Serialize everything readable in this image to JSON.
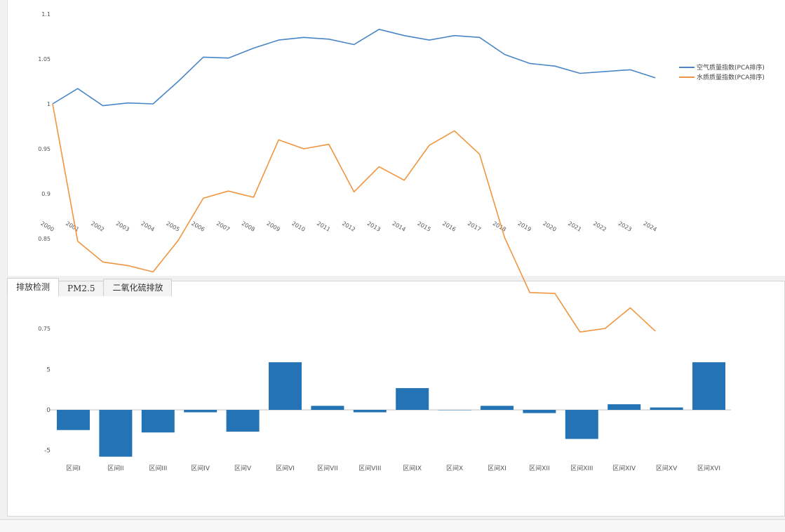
{
  "colors": {
    "series_1": "#4a86c5",
    "series_2": "#f0953f",
    "bar": "#2474b5",
    "axis": "#bfbfbf",
    "tick_text": "#555555"
  },
  "tabs": [
    "排放检测",
    "PM2.5",
    "二氧化硫排放"
  ],
  "chart_data": [
    {
      "type": "line",
      "x": [
        "2000",
        "2001",
        "2002",
        "2003",
        "2004",
        "2005",
        "2006",
        "2007",
        "2008",
        "2009",
        "2010",
        "2011",
        "2012",
        "2013",
        "2014",
        "2015",
        "2016",
        "2017",
        "2018",
        "2019",
        "2020",
        "2021",
        "2022",
        "2023",
        "2024"
      ],
      "series": [
        {
          "name": "空气质量指数(PCA排序)",
          "values": [
            1.0,
            1.017,
            0.998,
            1.001,
            1.0,
            1.025,
            1.052,
            1.051,
            1.062,
            1.071,
            1.074,
            1.072,
            1.066,
            1.083,
            1.076,
            1.071,
            1.076,
            1.074,
            1.055,
            1.045,
            1.042,
            1.034,
            1.036,
            1.038,
            1.029
          ]
        },
        {
          "name": "水质质量指数(PCA排序)",
          "values": [
            1.0,
            0.847,
            0.824,
            0.82,
            0.813,
            0.848,
            0.895,
            0.903,
            0.896,
            0.96,
            0.95,
            0.955,
            0.902,
            0.93,
            0.915,
            0.954,
            0.97,
            0.944,
            0.851,
            0.79,
            0.789,
            0.746,
            0.75,
            0.773,
            0.747
          ]
        }
      ],
      "ylim": [
        0.75,
        1.1
      ],
      "yticks": [
        "0.75",
        "0.8",
        "0.85",
        "0.9",
        "0.95",
        "1",
        "1.05",
        "1.1"
      ],
      "grid": false,
      "legend": "right"
    },
    {
      "type": "bar",
      "categories": [
        "区间I",
        "区间II",
        "区间III",
        "区间IV",
        "区间V",
        "区间VI",
        "区间VII",
        "区间VIII",
        "区间IX",
        "区间X",
        "区间XI",
        "区间XII",
        "区间XIII",
        "区间XIV",
        "区间XV",
        "区间XVI"
      ],
      "values": [
        -2.5,
        -5.8,
        -2.8,
        -0.3,
        -2.7,
        5.9,
        0.5,
        -0.3,
        2.7,
        0.0,
        0.5,
        -0.4,
        -3.6,
        0.7,
        0.3,
        5.9
      ],
      "ylim": [
        -6,
        6
      ],
      "yticks": [
        "-5",
        "0",
        "5"
      ],
      "grid": false
    }
  ]
}
